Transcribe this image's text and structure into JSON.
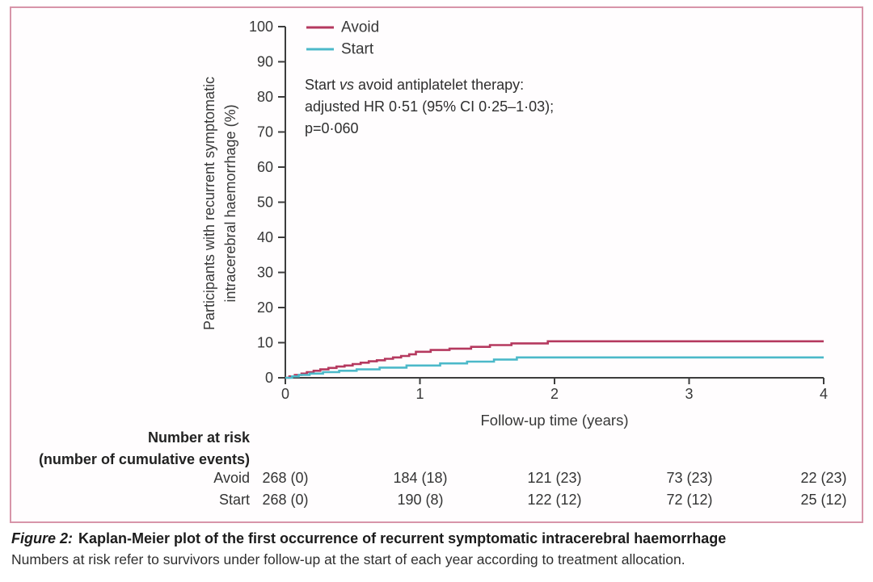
{
  "colors": {
    "avoid": "#b5395f",
    "start": "#4cb9c9",
    "axis": "#3d3d3d",
    "frame_border": "#d795a9",
    "text": "#2f2f2f"
  },
  "annotation": {
    "line1_pre": "Start ",
    "line1_italic": "vs",
    "line1_post": " avoid antiplatelet therapy:",
    "line2": "adjusted HR 0·51 (95% CI 0·25–1·03);",
    "line3": "p=0·060"
  },
  "chart_data": {
    "type": "line",
    "subtype": "kaplan-meier-step",
    "title": "",
    "xlabel": "Follow-up time (years)",
    "ylabel_line1": "Participants with recurrent symptomatic",
    "ylabel_line2": "intracerebral haemorrhage (%)",
    "xlim": [
      0,
      4
    ],
    "ylim": [
      0,
      100
    ],
    "xticks": [
      0,
      1,
      2,
      3,
      4
    ],
    "yticks": [
      0,
      10,
      20,
      30,
      40,
      50,
      60,
      70,
      80,
      90,
      100
    ],
    "grid": false,
    "legend_position": "top-left-inside",
    "series": [
      {
        "name": "Avoid",
        "color": "#b5395f",
        "final_value_pct": 10.4,
        "steps": [
          [
            0,
            0
          ],
          [
            0.03,
            0.4
          ],
          [
            0.07,
            0.8
          ],
          [
            0.12,
            1.2
          ],
          [
            0.16,
            1.6
          ],
          [
            0.21,
            2.0
          ],
          [
            0.26,
            2.4
          ],
          [
            0.32,
            2.8
          ],
          [
            0.38,
            3.2
          ],
          [
            0.44,
            3.5
          ],
          [
            0.5,
            3.9
          ],
          [
            0.56,
            4.3
          ],
          [
            0.62,
            4.7
          ],
          [
            0.68,
            5.0
          ],
          [
            0.74,
            5.4
          ],
          [
            0.8,
            5.8
          ],
          [
            0.86,
            6.2
          ],
          [
            0.92,
            6.7
          ],
          [
            0.97,
            7.4
          ],
          [
            1.08,
            7.9
          ],
          [
            1.22,
            8.3
          ],
          [
            1.38,
            8.8
          ],
          [
            1.52,
            9.3
          ],
          [
            1.68,
            9.8
          ],
          [
            1.95,
            10.4
          ]
        ]
      },
      {
        "name": "Start",
        "color": "#4cb9c9",
        "final_value_pct": 5.8,
        "steps": [
          [
            0,
            0
          ],
          [
            0.05,
            0.4
          ],
          [
            0.1,
            0.8
          ],
          [
            0.18,
            1.2
          ],
          [
            0.28,
            1.6
          ],
          [
            0.4,
            2.0
          ],
          [
            0.53,
            2.4
          ],
          [
            0.7,
            2.9
          ],
          [
            0.9,
            3.5
          ],
          [
            1.15,
            4.1
          ],
          [
            1.35,
            4.6
          ],
          [
            1.55,
            5.2
          ],
          [
            1.72,
            5.8
          ]
        ]
      }
    ]
  },
  "risk_table": {
    "header_line1": "Number at risk",
    "header_line2": "(number of cumulative events)",
    "time_points": [
      0,
      1,
      2,
      3,
      4
    ],
    "rows": [
      {
        "label": "Avoid",
        "values": [
          "268 (0)",
          "184 (18)",
          "121 (23)",
          "73 (23)",
          "22 (23)"
        ]
      },
      {
        "label": "Start",
        "values": [
          "268 (0)",
          "190 (8)",
          "122 (12)",
          "72 (12)",
          "25 (12)"
        ]
      }
    ]
  },
  "figure": {
    "caption_label": "Figure 2:",
    "caption_bold": "Kaplan-Meier plot of the first occurrence of recurrent symptomatic intracerebral haemorrhage",
    "caption_note": "Numbers at risk refer to survivors under follow-up at the start of each year according to treatment allocation."
  }
}
